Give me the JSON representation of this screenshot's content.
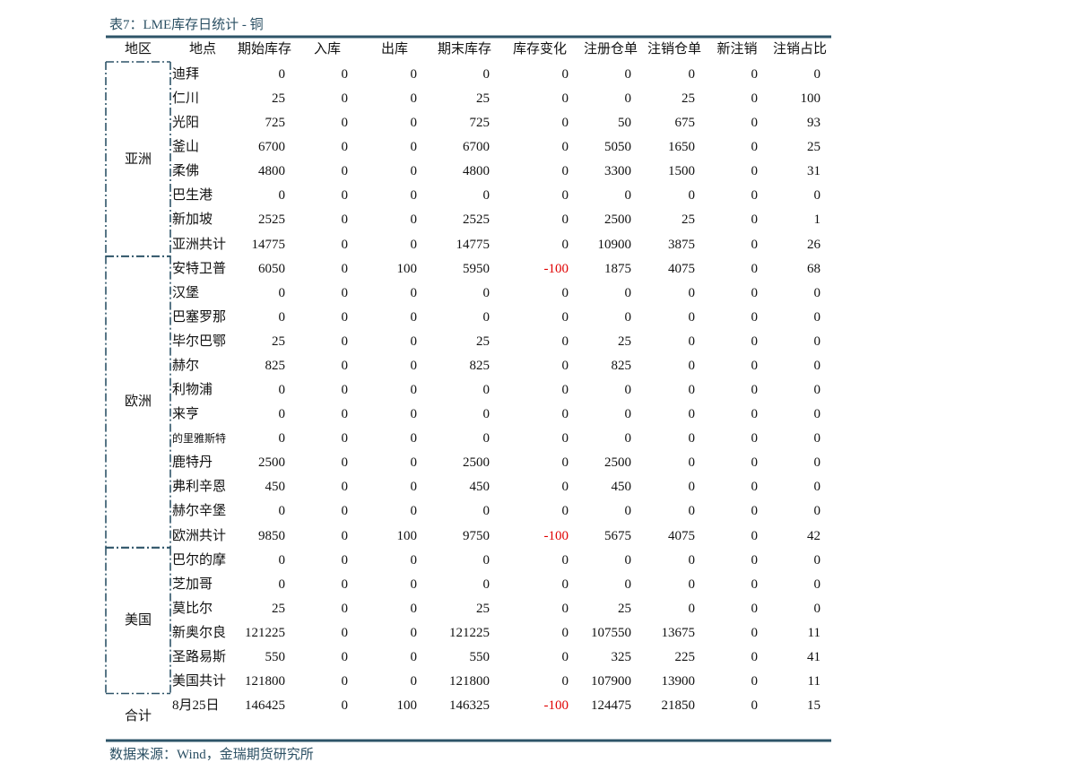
{
  "title": "表7：LME库存日统计 - 铜",
  "source": "数据来源：Wind，金瑞期货研究所",
  "table": {
    "header": [
      "地区",
      "地点",
      "期始库存",
      "入库",
      "出库",
      "期末库存",
      "库存变化",
      "注册仓单",
      "注销仓单",
      "新注销",
      "注销占比"
    ],
    "groups": [
      {
        "region": "亚洲",
        "rows": [
          {
            "location": "迪拜",
            "values": [
              0,
              0,
              0,
              0,
              0,
              0,
              0,
              0,
              0
            ]
          },
          {
            "location": "仁川",
            "values": [
              25,
              0,
              0,
              25,
              0,
              0,
              25,
              0,
              100
            ]
          },
          {
            "location": "光阳",
            "values": [
              725,
              0,
              0,
              725,
              0,
              50,
              675,
              0,
              93
            ]
          },
          {
            "location": "釜山",
            "values": [
              6700,
              0,
              0,
              6700,
              0,
              5050,
              1650,
              0,
              25
            ]
          },
          {
            "location": "柔佛",
            "values": [
              4800,
              0,
              0,
              4800,
              0,
              3300,
              1500,
              0,
              31
            ]
          },
          {
            "location": "巴生港",
            "values": [
              0,
              0,
              0,
              0,
              0,
              0,
              0,
              0,
              0
            ]
          },
          {
            "location": "新加坡",
            "values": [
              2525,
              0,
              0,
              2525,
              0,
              2500,
              25,
              0,
              1
            ]
          },
          {
            "location": "亚洲共计",
            "values": [
              14775,
              0,
              0,
              14775,
              0,
              10900,
              3875,
              0,
              26
            ]
          }
        ]
      },
      {
        "region": "欧洲",
        "rows": [
          {
            "location": "安特卫普",
            "values": [
              6050,
              0,
              100,
              5950,
              -100,
              1875,
              4075,
              0,
              68
            ]
          },
          {
            "location": "汉堡",
            "values": [
              0,
              0,
              0,
              0,
              0,
              0,
              0,
              0,
              0
            ]
          },
          {
            "location": "巴塞罗那",
            "values": [
              0,
              0,
              0,
              0,
              0,
              0,
              0,
              0,
              0
            ]
          },
          {
            "location": "毕尔巴鄂",
            "values": [
              25,
              0,
              0,
              25,
              0,
              25,
              0,
              0,
              0
            ]
          },
          {
            "location": "赫尔",
            "values": [
              825,
              0,
              0,
              825,
              0,
              825,
              0,
              0,
              0
            ]
          },
          {
            "location": "利物浦",
            "values": [
              0,
              0,
              0,
              0,
              0,
              0,
              0,
              0,
              0
            ]
          },
          {
            "location": "来亨",
            "values": [
              0,
              0,
              0,
              0,
              0,
              0,
              0,
              0,
              0
            ]
          },
          {
            "location": "的里雅斯特",
            "values": [
              0,
              0,
              0,
              0,
              0,
              0,
              0,
              0,
              0
            ]
          },
          {
            "location": "鹿特丹",
            "values": [
              2500,
              0,
              0,
              2500,
              0,
              2500,
              0,
              0,
              0
            ]
          },
          {
            "location": "弗利辛恩",
            "values": [
              450,
              0,
              0,
              450,
              0,
              450,
              0,
              0,
              0
            ]
          },
          {
            "location": "赫尔辛堡",
            "values": [
              0,
              0,
              0,
              0,
              0,
              0,
              0,
              0,
              0
            ]
          },
          {
            "location": "欧洲共计",
            "values": [
              9850,
              0,
              100,
              9750,
              -100,
              5675,
              4075,
              0,
              42
            ]
          }
        ]
      },
      {
        "region": "美国",
        "rows": [
          {
            "location": "巴尔的摩",
            "values": [
              0,
              0,
              0,
              0,
              0,
              0,
              0,
              0,
              0
            ]
          },
          {
            "location": "芝加哥",
            "values": [
              0,
              0,
              0,
              0,
              0,
              0,
              0,
              0,
              0
            ]
          },
          {
            "location": "莫比尔",
            "values": [
              25,
              0,
              0,
              25,
              0,
              25,
              0,
              0,
              0
            ]
          },
          {
            "location": "新奥尔良",
            "values": [
              121225,
              0,
              0,
              121225,
              0,
              107550,
              13675,
              0,
              11
            ]
          },
          {
            "location": "圣路易斯",
            "values": [
              550,
              0,
              0,
              550,
              0,
              325,
              225,
              0,
              41
            ]
          },
          {
            "location": "美国共计",
            "values": [
              121800,
              0,
              0,
              121800,
              0,
              107900,
              13900,
              0,
              11
            ]
          }
        ]
      }
    ],
    "total": {
      "label": "合计",
      "location": "8月25日",
      "values": [
        146425,
        0,
        100,
        146325,
        -100,
        124475,
        21850,
        0,
        15
      ]
    }
  }
}
